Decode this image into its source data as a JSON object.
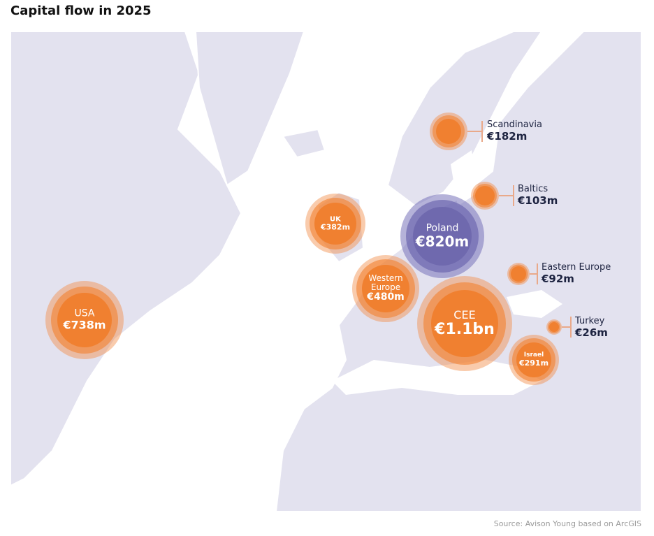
{
  "title": "Capital flow in 2025",
  "source": "Source: Avison Young based on ArcGIS",
  "colors": {
    "land": "#e3e2ef",
    "water": "#ffffff",
    "orange": "#f08030",
    "purple": "#6f69ae"
  },
  "regions": [
    {
      "name": "Scandinavia",
      "value": "€182m"
    },
    {
      "name": "Baltics",
      "value": "€103m"
    },
    {
      "name": "UK",
      "value": "€382m"
    },
    {
      "name": "Poland",
      "value": "€820m"
    },
    {
      "name": "Western Europe",
      "value": "€480m"
    },
    {
      "name": "USA",
      "value": "€738m"
    },
    {
      "name": "CEE",
      "value": "€1.1bn"
    },
    {
      "name": "Eastern Europe",
      "value": "€92m"
    },
    {
      "name": "Turkey",
      "value": "€26m"
    },
    {
      "name": "Israel",
      "value": "€291m"
    }
  ]
}
